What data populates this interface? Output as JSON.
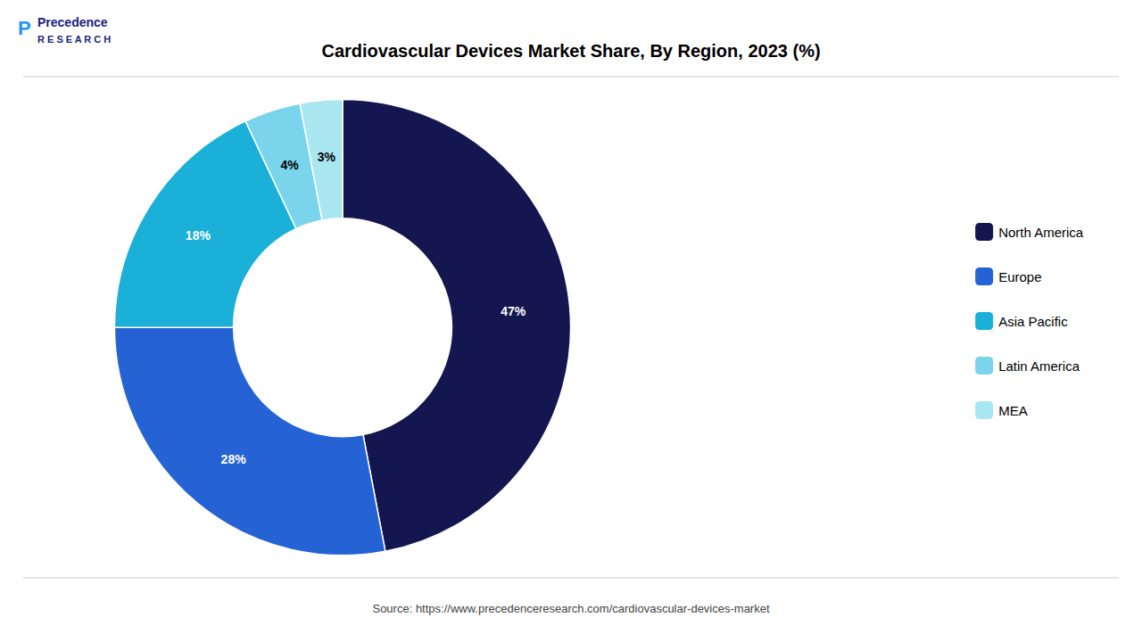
{
  "chart_data": {
    "type": "pie",
    "title": "Cardiovascular Devices Market Share, By Region, 2023 (%)",
    "categories": [
      "North America",
      "Europe",
      "Asia Pacific",
      "Latin America",
      "MEA"
    ],
    "values": [
      47,
      28,
      18,
      4,
      3
    ],
    "value_labels": [
      "47%",
      "28%",
      "18%",
      "4%",
      "3%"
    ],
    "colors": [
      "#14174f",
      "#2563d4",
      "#1ab0d8",
      "#7ad4ec",
      "#a8e6f0"
    ],
    "data_labels": true,
    "legend": "right",
    "annotations": [
      "P",
      "Precedence",
      "R E S E A R C H",
      "Source: https://www.precedenceresearch.com/cardiovascular-devices-market"
    ]
  }
}
